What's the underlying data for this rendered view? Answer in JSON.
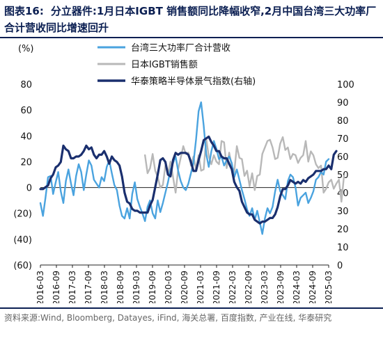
{
  "header": {
    "prefix": "图表16:",
    "title": "分立器件:1月日本IGBT 销售额同比降幅收窄,2月中国台湾三大功率厂合计营收同比增速回升"
  },
  "source": "资料来源:Wind, Bloomberg, Datayes, iFind, 海关总署, 百度指数, 产业在线, 华泰研究",
  "chart_data": {
    "type": "line",
    "left_axis": {
      "unit_label": "(%)",
      "range": [
        -60,
        80
      ],
      "ticks": [
        80,
        60,
        40,
        20,
        0,
        -20,
        -40,
        -60
      ],
      "tick_labels": [
        "80",
        "60",
        "40",
        "20",
        "0",
        "(20)",
        "(40)",
        "(60)"
      ]
    },
    "right_axis": {
      "range": [
        0,
        100
      ],
      "ticks": [
        100,
        90,
        80,
        70,
        60,
        50,
        40,
        30,
        20,
        10,
        0
      ],
      "tick_labels": [
        "100",
        "90",
        "80",
        "70",
        "60",
        "50",
        "40",
        "30",
        "20",
        "10",
        "0"
      ]
    },
    "x_labels": [
      "2016-03",
      "2016-09",
      "2017-03",
      "2017-09",
      "2018-03",
      "2018-09",
      "2019-03",
      "2019-09",
      "2020-03",
      "2020-09",
      "2021-03",
      "2021-09",
      "2022-03",
      "2022-09",
      "2023-03",
      "2023-09",
      "2024-03",
      "2024-09",
      "2025-03"
    ],
    "x_start": "2016-03",
    "x_end": "2025-03",
    "legend": [
      {
        "name": "台湾三大功率厂合计营收",
        "color": "#4aa3df"
      },
      {
        "name": "日本IGBT销售额",
        "color": "#b8b8b8"
      },
      {
        "name": "华泰策略半导体景气指数(右轴)",
        "color": "#1a2f6e"
      }
    ],
    "series": [
      {
        "name": "台湾三大功率厂合计营收",
        "axis": "left",
        "color": "#4aa3df",
        "values": [
          -12,
          -22,
          -8,
          8,
          9,
          -5,
          4,
          12,
          -3,
          -12,
          5,
          14,
          3,
          -6,
          9,
          18,
          12,
          -2,
          10,
          21,
          17,
          6,
          3,
          0,
          8,
          5,
          16,
          21,
          11,
          2,
          -2,
          -14,
          -22,
          -24,
          -16,
          -24,
          -5,
          4,
          -9,
          -15,
          -20,
          -26,
          -15,
          -10,
          -20,
          -24,
          -10,
          -19,
          -12,
          -4,
          4,
          14,
          19,
          24,
          13,
          5,
          0,
          -2,
          3,
          11,
          19,
          37,
          59,
          66,
          48,
          26,
          16,
          28,
          36,
          30,
          22,
          24,
          17,
          21,
          24,
          19,
          8,
          14,
          6,
          -2,
          -9,
          -17,
          -22,
          -16,
          -25,
          -18,
          -27,
          -36,
          -24,
          -16,
          -20,
          -15,
          -3,
          6,
          -3,
          -6,
          -9,
          5,
          10,
          8,
          0,
          -14,
          -8,
          -6,
          -4,
          -12,
          -8,
          -3,
          6,
          8,
          12,
          10,
          20,
          22
        ]
      },
      {
        "name": "日本IGBT销售额",
        "axis": "left",
        "color": "#b8b8b8",
        "start_index": 41,
        "values": [
          25,
          11,
          15,
          26,
          13,
          8,
          0,
          2,
          17,
          11,
          20,
          8,
          -4,
          14,
          23,
          32,
          26,
          27,
          17,
          24,
          14,
          25,
          13,
          14,
          38,
          24,
          18,
          25,
          20,
          18,
          36,
          35,
          15,
          27,
          17,
          12,
          32,
          23,
          22,
          9,
          13,
          1,
          11,
          -2,
          9,
          10,
          26,
          31,
          36,
          37,
          31,
          22,
          23,
          34,
          39,
          29,
          31,
          22,
          26,
          25,
          19,
          23,
          25,
          36,
          20,
          28,
          25,
          18,
          15,
          17,
          -4,
          -1,
          4,
          6,
          -1,
          3,
          6,
          -11,
          9
        ]
      },
      {
        "name": "华泰策略半导体景气指数(右轴)",
        "axis": "right",
        "color": "#1a2f6e",
        "values": [
          42,
          42,
          43,
          44,
          48,
          50,
          54,
          55,
          57,
          66,
          64,
          63,
          59,
          59,
          60,
          60,
          61,
          63,
          66,
          64,
          65,
          61,
          59,
          61,
          61,
          63,
          60,
          56,
          60,
          58,
          57,
          55,
          49,
          40,
          35,
          34,
          31,
          30,
          30,
          29,
          29,
          29,
          29,
          33,
          36,
          43,
          50,
          58,
          59,
          57,
          50,
          49,
          58,
          62,
          61,
          62,
          62,
          62,
          61,
          57,
          52,
          52,
          58,
          63,
          69,
          70,
          71,
          68,
          66,
          63,
          63,
          60,
          59,
          59,
          56,
          53,
          46,
          43,
          41,
          35,
          32,
          29,
          28,
          28,
          25,
          24,
          23,
          24,
          24,
          25,
          26,
          26,
          28,
          32,
          38,
          42,
          42,
          44,
          47,
          46,
          45,
          46,
          45,
          47,
          46,
          48,
          49,
          50,
          52,
          52,
          52,
          53,
          53,
          55,
          53,
          61,
          63
        ]
      }
    ]
  }
}
